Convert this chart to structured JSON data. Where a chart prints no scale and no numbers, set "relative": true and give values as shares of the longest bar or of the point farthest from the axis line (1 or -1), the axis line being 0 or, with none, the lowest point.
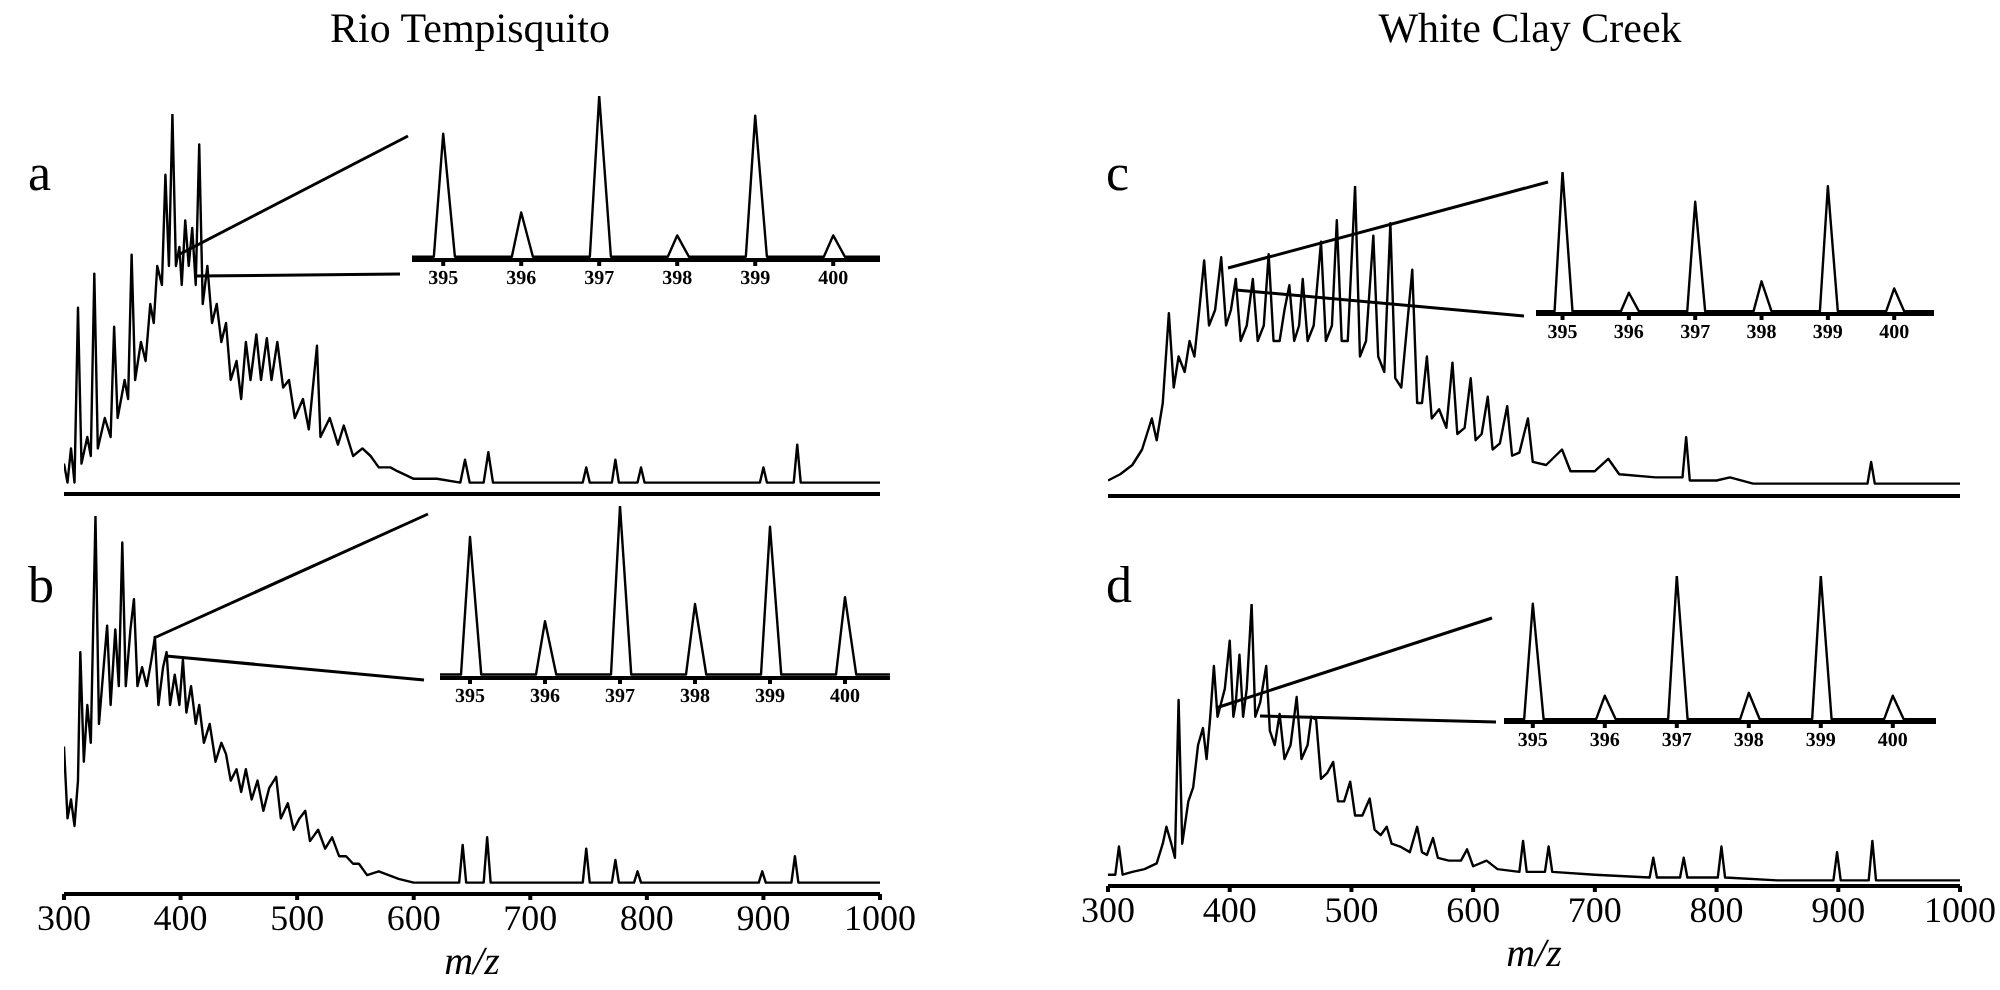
{
  "chart_data": [
    {
      "type": "line",
      "title": "Rio Tempisquito",
      "annotations": [
        "a"
      ],
      "relative": true,
      "tick_labels": false,
      "xlim": [
        300,
        1000
      ],
      "xticks": [
        300,
        400,
        500,
        600,
        700,
        800,
        900,
        1000
      ],
      "color": "#000000",
      "x": [
        300,
        303,
        306,
        309,
        312,
        315,
        320,
        323,
        326,
        329,
        335,
        340,
        343,
        346,
        352,
        355,
        358,
        361,
        366,
        370,
        374,
        377,
        380,
        384,
        387,
        390,
        393,
        396,
        399,
        401,
        404,
        407,
        410,
        413,
        416,
        419,
        423,
        427,
        431,
        435,
        439,
        443,
        448,
        452,
        456,
        460,
        465,
        469,
        474,
        478,
        483,
        488,
        493,
        498,
        505,
        510,
        517,
        520,
        528,
        535,
        540,
        548,
        556,
        563,
        570,
        580,
        586,
        600,
        620,
        640,
        644,
        648,
        660,
        664,
        668,
        700,
        745,
        748,
        751,
        770,
        773,
        776,
        792,
        795,
        798,
        850,
        897,
        900,
        903,
        926,
        929,
        932,
        1000
      ],
      "values": [
        0.08,
        0.03,
        0.12,
        0.03,
        0.49,
        0.08,
        0.15,
        0.1,
        0.58,
        0.12,
        0.2,
        0.15,
        0.44,
        0.2,
        0.3,
        0.25,
        0.63,
        0.3,
        0.4,
        0.35,
        0.5,
        0.45,
        0.6,
        0.55,
        0.84,
        0.6,
        1,
        0.6,
        0.65,
        0.55,
        0.72,
        0.6,
        0.7,
        0.55,
        0.92,
        0.5,
        0.6,
        0.45,
        0.5,
        0.4,
        0.45,
        0.3,
        0.35,
        0.25,
        0.4,
        0.3,
        0.42,
        0.3,
        0.41,
        0.3,
        0.4,
        0.28,
        0.3,
        0.2,
        0.25,
        0.17,
        0.39,
        0.15,
        0.2,
        0.13,
        0.18,
        0.1,
        0.12,
        0.1,
        0.07,
        0.07,
        0.06,
        0.04,
        0.04,
        0.03,
        0.09,
        0.03,
        0.03,
        0.11,
        0.03,
        0.03,
        0.03,
        0.07,
        0.03,
        0.03,
        0.09,
        0.03,
        0.03,
        0.07,
        0.03,
        0.03,
        0.03,
        0.07,
        0.03,
        0.03,
        0.13,
        0.03,
        0.03
      ]
    },
    {
      "type": "line",
      "relative": true,
      "tick_labels": "x",
      "xlim": [
        394.6,
        400.6
      ],
      "xticks": [
        395,
        396,
        397,
        398,
        399,
        400
      ],
      "color": "#000000",
      "x": [
        394.6,
        394.88,
        395,
        395.15,
        395.88,
        396,
        396.15,
        396.88,
        397,
        397.15,
        397.88,
        398,
        398.15,
        398.88,
        399,
        399.15,
        399.88,
        400,
        400.15,
        400.6
      ],
      "values": [
        0.02,
        0.02,
        0.77,
        0.02,
        0.02,
        0.29,
        0.02,
        0.02,
        1,
        0.02,
        0.02,
        0.15,
        0.02,
        0.02,
        0.88,
        0.02,
        0.02,
        0.15,
        0.02,
        0.02
      ]
    },
    {
      "type": "line",
      "title": "White Clay Creek",
      "annotations": [
        "c"
      ],
      "relative": true,
      "tick_labels": false,
      "xlim": [
        300,
        1000
      ],
      "xticks": [
        300,
        400,
        500,
        600,
        700,
        800,
        900,
        1000
      ],
      "color": "#000000",
      "x": [
        300,
        310,
        320,
        328,
        336,
        340,
        345,
        350,
        354,
        358,
        363,
        367,
        371,
        375,
        379,
        383,
        388,
        393,
        397,
        401,
        405,
        409,
        414,
        419,
        423,
        428,
        432,
        436,
        441,
        445,
        449,
        453,
        457,
        460,
        464,
        469,
        475,
        479,
        484,
        488,
        492,
        497,
        503,
        507,
        512,
        518,
        522,
        527,
        532,
        536,
        541,
        550,
        554,
        558,
        562,
        566,
        572,
        578,
        583,
        587,
        593,
        598,
        602,
        607,
        612,
        616,
        622,
        628,
        632,
        638,
        645,
        649,
        660,
        673,
        680,
        700,
        711,
        720,
        750,
        772,
        775,
        778,
        800,
        811,
        830,
        900,
        924,
        927,
        930,
        1000
      ],
      "values": [
        0.05,
        0.07,
        0.1,
        0.15,
        0.25,
        0.18,
        0.3,
        0.59,
        0.35,
        0.45,
        0.4,
        0.5,
        0.45,
        0.6,
        0.76,
        0.55,
        0.6,
        0.77,
        0.55,
        0.6,
        0.7,
        0.5,
        0.55,
        0.7,
        0.5,
        0.55,
        0.78,
        0.5,
        0.5,
        0.6,
        0.68,
        0.5,
        0.55,
        0.7,
        0.5,
        0.55,
        0.82,
        0.5,
        0.55,
        0.89,
        0.5,
        0.5,
        1,
        0.45,
        0.5,
        0.84,
        0.45,
        0.4,
        0.88,
        0.38,
        0.35,
        0.73,
        0.3,
        0.3,
        0.45,
        0.25,
        0.28,
        0.22,
        0.43,
        0.2,
        0.22,
        0.38,
        0.18,
        0.2,
        0.32,
        0.15,
        0.17,
        0.29,
        0.13,
        0.14,
        0.25,
        0.11,
        0.1,
        0.15,
        0.08,
        0.08,
        0.12,
        0.07,
        0.06,
        0.06,
        0.19,
        0.05,
        0.05,
        0.06,
        0.04,
        0.04,
        0.04,
        0.11,
        0.04,
        0.04
      ]
    },
    {
      "type": "line",
      "relative": true,
      "tick_labels": "x",
      "xlim": [
        394.6,
        400.6
      ],
      "xticks": [
        395,
        396,
        397,
        398,
        399,
        400
      ],
      "color": "#000000",
      "x": [
        394.6,
        394.88,
        395,
        395.15,
        395.88,
        396,
        396.15,
        396.88,
        397,
        397.15,
        397.88,
        398,
        398.15,
        398.88,
        399,
        399.15,
        399.88,
        400,
        400.15,
        400.6
      ],
      "values": [
        0.02,
        0.02,
        1,
        0.02,
        0.02,
        0.15,
        0.02,
        0.02,
        0.79,
        0.02,
        0.02,
        0.23,
        0.02,
        0.02,
        0.9,
        0.02,
        0.02,
        0.18,
        0.02,
        0.02
      ]
    },
    {
      "type": "line",
      "annotations": [
        "b"
      ],
      "xlabel": "m/z",
      "relative": true,
      "tick_labels": "x",
      "xlim": [
        300,
        1000
      ],
      "xticks": [
        300,
        400,
        500,
        600,
        700,
        800,
        900,
        1000
      ],
      "color": "#000000",
      "x": [
        300,
        303,
        306,
        309,
        312,
        314,
        317,
        320,
        323,
        327,
        330,
        334,
        337,
        340,
        344,
        347,
        350,
        353,
        357,
        360,
        363,
        367,
        371,
        375,
        378,
        381,
        385,
        388,
        391,
        395,
        399,
        402,
        405,
        409,
        413,
        416,
        420,
        425,
        430,
        435,
        439,
        443,
        448,
        452,
        456,
        461,
        466,
        471,
        476,
        482,
        486,
        492,
        497,
        502,
        507,
        511,
        518,
        524,
        530,
        536,
        542,
        548,
        553,
        560,
        570,
        587,
        600,
        620,
        639,
        642,
        645,
        660,
        663,
        666,
        700,
        745,
        748,
        751,
        770,
        773,
        776,
        789,
        792,
        795,
        850,
        896,
        899,
        902,
        924,
        927,
        930,
        1000
      ],
      "values": [
        0.39,
        0.2,
        0.25,
        0.18,
        0.3,
        0.64,
        0.35,
        0.5,
        0.4,
        1,
        0.45,
        0.6,
        0.71,
        0.5,
        0.7,
        0.55,
        0.93,
        0.55,
        0.7,
        0.78,
        0.55,
        0.6,
        0.55,
        0.62,
        0.68,
        0.5,
        0.6,
        0.64,
        0.5,
        0.58,
        0.5,
        0.62,
        0.48,
        0.55,
        0.45,
        0.5,
        0.4,
        0.45,
        0.35,
        0.4,
        0.37,
        0.3,
        0.33,
        0.27,
        0.33,
        0.25,
        0.3,
        0.22,
        0.28,
        0.31,
        0.2,
        0.24,
        0.17,
        0.2,
        0.22,
        0.14,
        0.17,
        0.12,
        0.15,
        0.1,
        0.1,
        0.08,
        0.08,
        0.05,
        0.06,
        0.04,
        0.03,
        0.03,
        0.03,
        0.13,
        0.03,
        0.03,
        0.15,
        0.03,
        0.03,
        0.03,
        0.12,
        0.03,
        0.03,
        0.09,
        0.03,
        0.03,
        0.06,
        0.03,
        0.03,
        0.03,
        0.06,
        0.03,
        0.03,
        0.1,
        0.03,
        0.03
      ]
    },
    {
      "type": "line",
      "relative": true,
      "tick_labels": "x",
      "xlim": [
        394.6,
        400.6
      ],
      "xticks": [
        395,
        396,
        397,
        398,
        399,
        400
      ],
      "color": "#000000",
      "x": [
        394.6,
        394.88,
        395,
        395.15,
        395.88,
        396,
        396.15,
        396.88,
        397,
        397.15,
        397.88,
        398,
        398.15,
        398.88,
        399,
        399.15,
        399.88,
        400,
        400.15,
        400.6
      ],
      "values": [
        0.02,
        0.02,
        0.82,
        0.02,
        0.02,
        0.33,
        0.02,
        0.02,
        1,
        0.02,
        0.02,
        0.43,
        0.02,
        0.02,
        0.88,
        0.02,
        0.02,
        0.47,
        0.02,
        0.02
      ]
    },
    {
      "type": "line",
      "annotations": [
        "d"
      ],
      "xlabel": "m/z",
      "relative": true,
      "tick_labels": "x",
      "xlim": [
        300,
        1000
      ],
      "xticks": [
        300,
        400,
        500,
        600,
        700,
        800,
        900,
        1000
      ],
      "color": "#000000",
      "x": [
        300,
        306,
        309,
        312,
        320,
        330,
        340,
        345,
        348,
        352,
        355,
        358,
        361,
        366,
        370,
        374,
        378,
        381,
        384,
        387,
        390,
        393,
        396,
        400,
        403,
        405,
        408,
        411,
        414,
        418,
        421,
        425,
        430,
        433,
        437,
        441,
        445,
        450,
        455,
        459,
        464,
        467,
        471,
        475,
        480,
        485,
        489,
        494,
        499,
        503,
        509,
        515,
        519,
        524,
        529,
        533,
        540,
        548,
        554,
        558,
        562,
        567,
        571,
        580,
        590,
        595,
        600,
        611,
        620,
        638,
        641,
        644,
        659,
        662,
        665,
        700,
        745,
        748,
        751,
        770,
        773,
        776,
        801,
        804,
        807,
        850,
        896,
        899,
        902,
        925,
        928,
        931,
        1000
      ],
      "values": [
        0.04,
        0.04,
        0.14,
        0.04,
        0.05,
        0.06,
        0.08,
        0.15,
        0.21,
        0.15,
        0.1,
        0.66,
        0.15,
        0.3,
        0.35,
        0.5,
        0.56,
        0.45,
        0.6,
        0.78,
        0.6,
        0.65,
        0.7,
        0.87,
        0.6,
        0.65,
        0.82,
        0.6,
        0.7,
        1,
        0.6,
        0.65,
        0.78,
        0.55,
        0.5,
        0.61,
        0.45,
        0.5,
        0.67,
        0.45,
        0.5,
        0.6,
        0.59,
        0.38,
        0.4,
        0.44,
        0.3,
        0.3,
        0.37,
        0.25,
        0.25,
        0.31,
        0.2,
        0.18,
        0.21,
        0.15,
        0.14,
        0.12,
        0.21,
        0.12,
        0.11,
        0.17,
        0.1,
        0.09,
        0.09,
        0.13,
        0.07,
        0.09,
        0.06,
        0.05,
        0.16,
        0.05,
        0.05,
        0.14,
        0.05,
        0.04,
        0.03,
        0.1,
        0.03,
        0.03,
        0.1,
        0.03,
        0.03,
        0.14,
        0.03,
        0.02,
        0.02,
        0.12,
        0.02,
        0.02,
        0.16,
        0.02,
        0.02
      ]
    },
    {
      "type": "line",
      "relative": true,
      "tick_labels": "x",
      "xlim": [
        394.6,
        400.6
      ],
      "xticks": [
        395,
        396,
        397,
        398,
        399,
        400
      ],
      "color": "#000000",
      "x": [
        394.6,
        394.88,
        395,
        395.15,
        395.88,
        396,
        396.15,
        396.88,
        397,
        397.15,
        397.88,
        398,
        398.15,
        398.88,
        399,
        399.15,
        399.88,
        400,
        400.15,
        400.6
      ],
      "values": [
        0.02,
        0.02,
        0.81,
        0.02,
        0.02,
        0.18,
        0.02,
        0.02,
        1,
        0.02,
        0.02,
        0.2,
        0.02,
        0.02,
        1,
        0.02,
        0.02,
        0.18,
        0.02,
        0.02
      ]
    }
  ]
}
